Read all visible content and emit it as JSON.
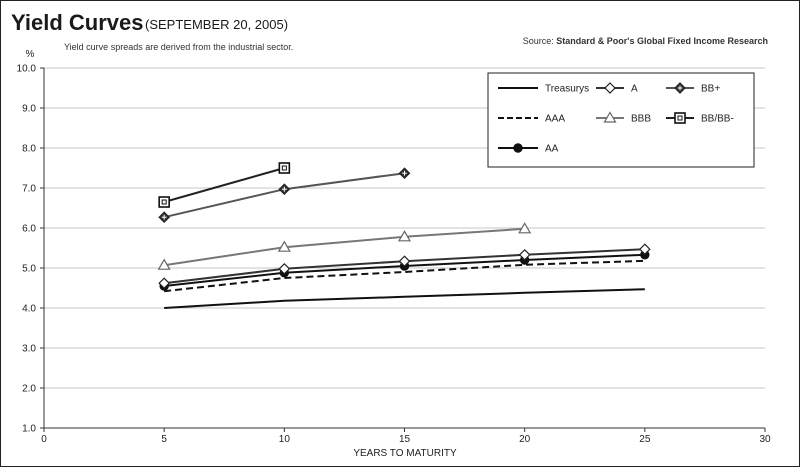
{
  "header": {
    "title": "Yield Curves",
    "subtitle": "(SEPTEMBER 20, 2005)",
    "note": "Yield curve spreads are derived from the industrial sector.",
    "source_prefix": "Source: ",
    "source_name": "Standard & Poor's Global Fixed Income Research"
  },
  "chart_data": {
    "type": "line",
    "title": "Yield Curves",
    "subtitle": "(SEPTEMBER 20, 2005)",
    "xlabel": "YEARS TO MATURITY",
    "ylabel": "%",
    "xlim": [
      0,
      30
    ],
    "ylim": [
      1.0,
      10.0
    ],
    "x_ticks": [
      "0",
      "5",
      "10",
      "15",
      "20",
      "25",
      "30"
    ],
    "y_ticks": [
      "1.0",
      "2.0",
      "3.0",
      "4.0",
      "5.0",
      "6.0",
      "7.0",
      "8.0",
      "9.0",
      "10.0"
    ],
    "grid": true,
    "legend_position": "top-right",
    "series": [
      {
        "name": "Treasurys",
        "x": [
          5,
          10,
          15,
          20,
          25
        ],
        "y": [
          4.0,
          4.18,
          4.28,
          4.38,
          4.47
        ],
        "color": "#111111",
        "dash": "solid",
        "marker": "none"
      },
      {
        "name": "AAA",
        "x": [
          5,
          10,
          15,
          20,
          25
        ],
        "y": [
          4.42,
          4.75,
          4.9,
          5.08,
          5.18
        ],
        "color": "#111111",
        "dash": "dashed",
        "marker": "none"
      },
      {
        "name": "AA",
        "x": [
          5,
          10,
          15,
          20,
          25
        ],
        "y": [
          4.55,
          4.88,
          5.05,
          5.2,
          5.33
        ],
        "color": "#111111",
        "dash": "solid",
        "marker": "circle"
      },
      {
        "name": "A",
        "x": [
          5,
          10,
          15,
          20,
          25
        ],
        "y": [
          4.62,
          4.98,
          5.17,
          5.33,
          5.47
        ],
        "color": "#333333",
        "dash": "solid",
        "marker": "diamond-open"
      },
      {
        "name": "BBB",
        "x": [
          5,
          10,
          15,
          20
        ],
        "y": [
          5.07,
          5.52,
          5.78,
          5.98
        ],
        "color": "#777777",
        "dash": "solid",
        "marker": "triangle-open"
      },
      {
        "name": "BB+",
        "x": [
          5,
          10,
          15
        ],
        "y": [
          6.27,
          6.97,
          7.37
        ],
        "color": "#555555",
        "dash": "solid",
        "marker": "diamond-filled"
      },
      {
        "name": "BB/BB-",
        "x": [
          5,
          10
        ],
        "y": [
          6.65,
          7.5
        ],
        "color": "#222222",
        "dash": "solid",
        "marker": "square-open"
      }
    ]
  }
}
